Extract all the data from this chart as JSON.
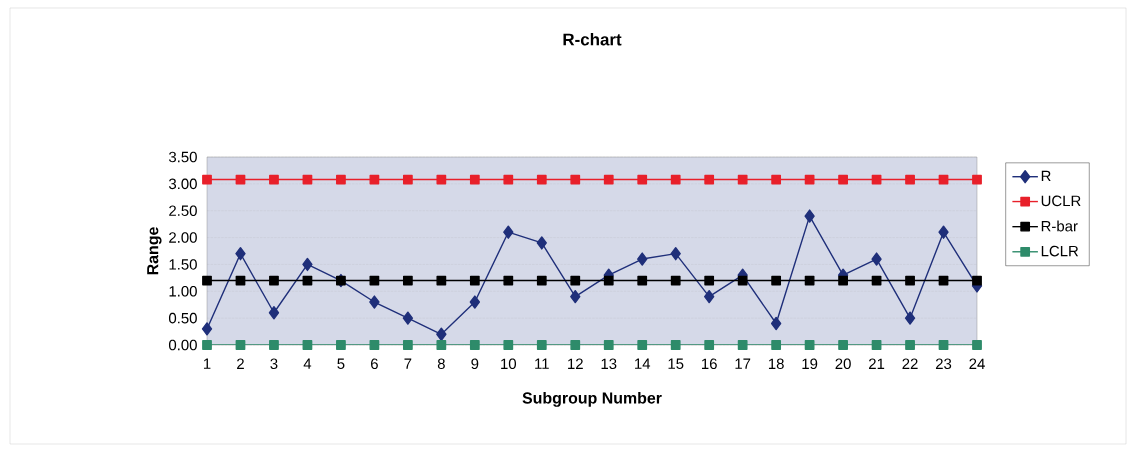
{
  "chart_data": {
    "type": "line",
    "title": "R-chart",
    "xlabel": "Subgroup Number",
    "ylabel": "Range",
    "categories": [
      "1",
      "2",
      "3",
      "4",
      "5",
      "6",
      "7",
      "8",
      "9",
      "10",
      "11",
      "12",
      "13",
      "14",
      "15",
      "16",
      "17",
      "18",
      "19",
      "20",
      "21",
      "22",
      "23",
      "24"
    ],
    "series": [
      {
        "name": "R",
        "color": "#1f2f7a",
        "marker": "diamond",
        "values": [
          0.3,
          1.7,
          0.6,
          1.5,
          1.2,
          0.8,
          0.5,
          0.2,
          0.8,
          2.1,
          1.9,
          0.9,
          1.3,
          1.6,
          1.7,
          0.9,
          1.3,
          0.4,
          2.4,
          1.3,
          1.6,
          0.5,
          2.1,
          1.1
        ]
      },
      {
        "name": "UCLR",
        "color": "#e8202a",
        "marker": "square",
        "values": [
          3.08,
          3.08,
          3.08,
          3.08,
          3.08,
          3.08,
          3.08,
          3.08,
          3.08,
          3.08,
          3.08,
          3.08,
          3.08,
          3.08,
          3.08,
          3.08,
          3.08,
          3.08,
          3.08,
          3.08,
          3.08,
          3.08,
          3.08,
          3.08
        ]
      },
      {
        "name": "R-bar",
        "color": "#000000",
        "marker": "square",
        "values": [
          1.2,
          1.2,
          1.2,
          1.2,
          1.2,
          1.2,
          1.2,
          1.2,
          1.2,
          1.2,
          1.2,
          1.2,
          1.2,
          1.2,
          1.2,
          1.2,
          1.2,
          1.2,
          1.2,
          1.2,
          1.2,
          1.2,
          1.2,
          1.2
        ]
      },
      {
        "name": "LCLR",
        "color": "#2e8b6a",
        "marker": "square",
        "values": [
          0,
          0,
          0,
          0,
          0,
          0,
          0,
          0,
          0,
          0,
          0,
          0,
          0,
          0,
          0,
          0,
          0,
          0,
          0,
          0,
          0,
          0,
          0,
          0
        ]
      }
    ],
    "ylim": [
      0,
      3.5
    ],
    "yticks": [
      {
        "value": 0,
        "label": "0.00"
      },
      {
        "value": 0.5,
        "label": "0.50"
      },
      {
        "value": 1,
        "label": "1.00"
      },
      {
        "value": 1.5,
        "label": "1.50"
      },
      {
        "value": 2,
        "label": "2.00"
      },
      {
        "value": 2.5,
        "label": "2.50"
      },
      {
        "value": 3,
        "label": "3.00"
      },
      {
        "value": 3.5,
        "label": "3.50"
      }
    ],
    "grid": "y",
    "legend": "right"
  }
}
